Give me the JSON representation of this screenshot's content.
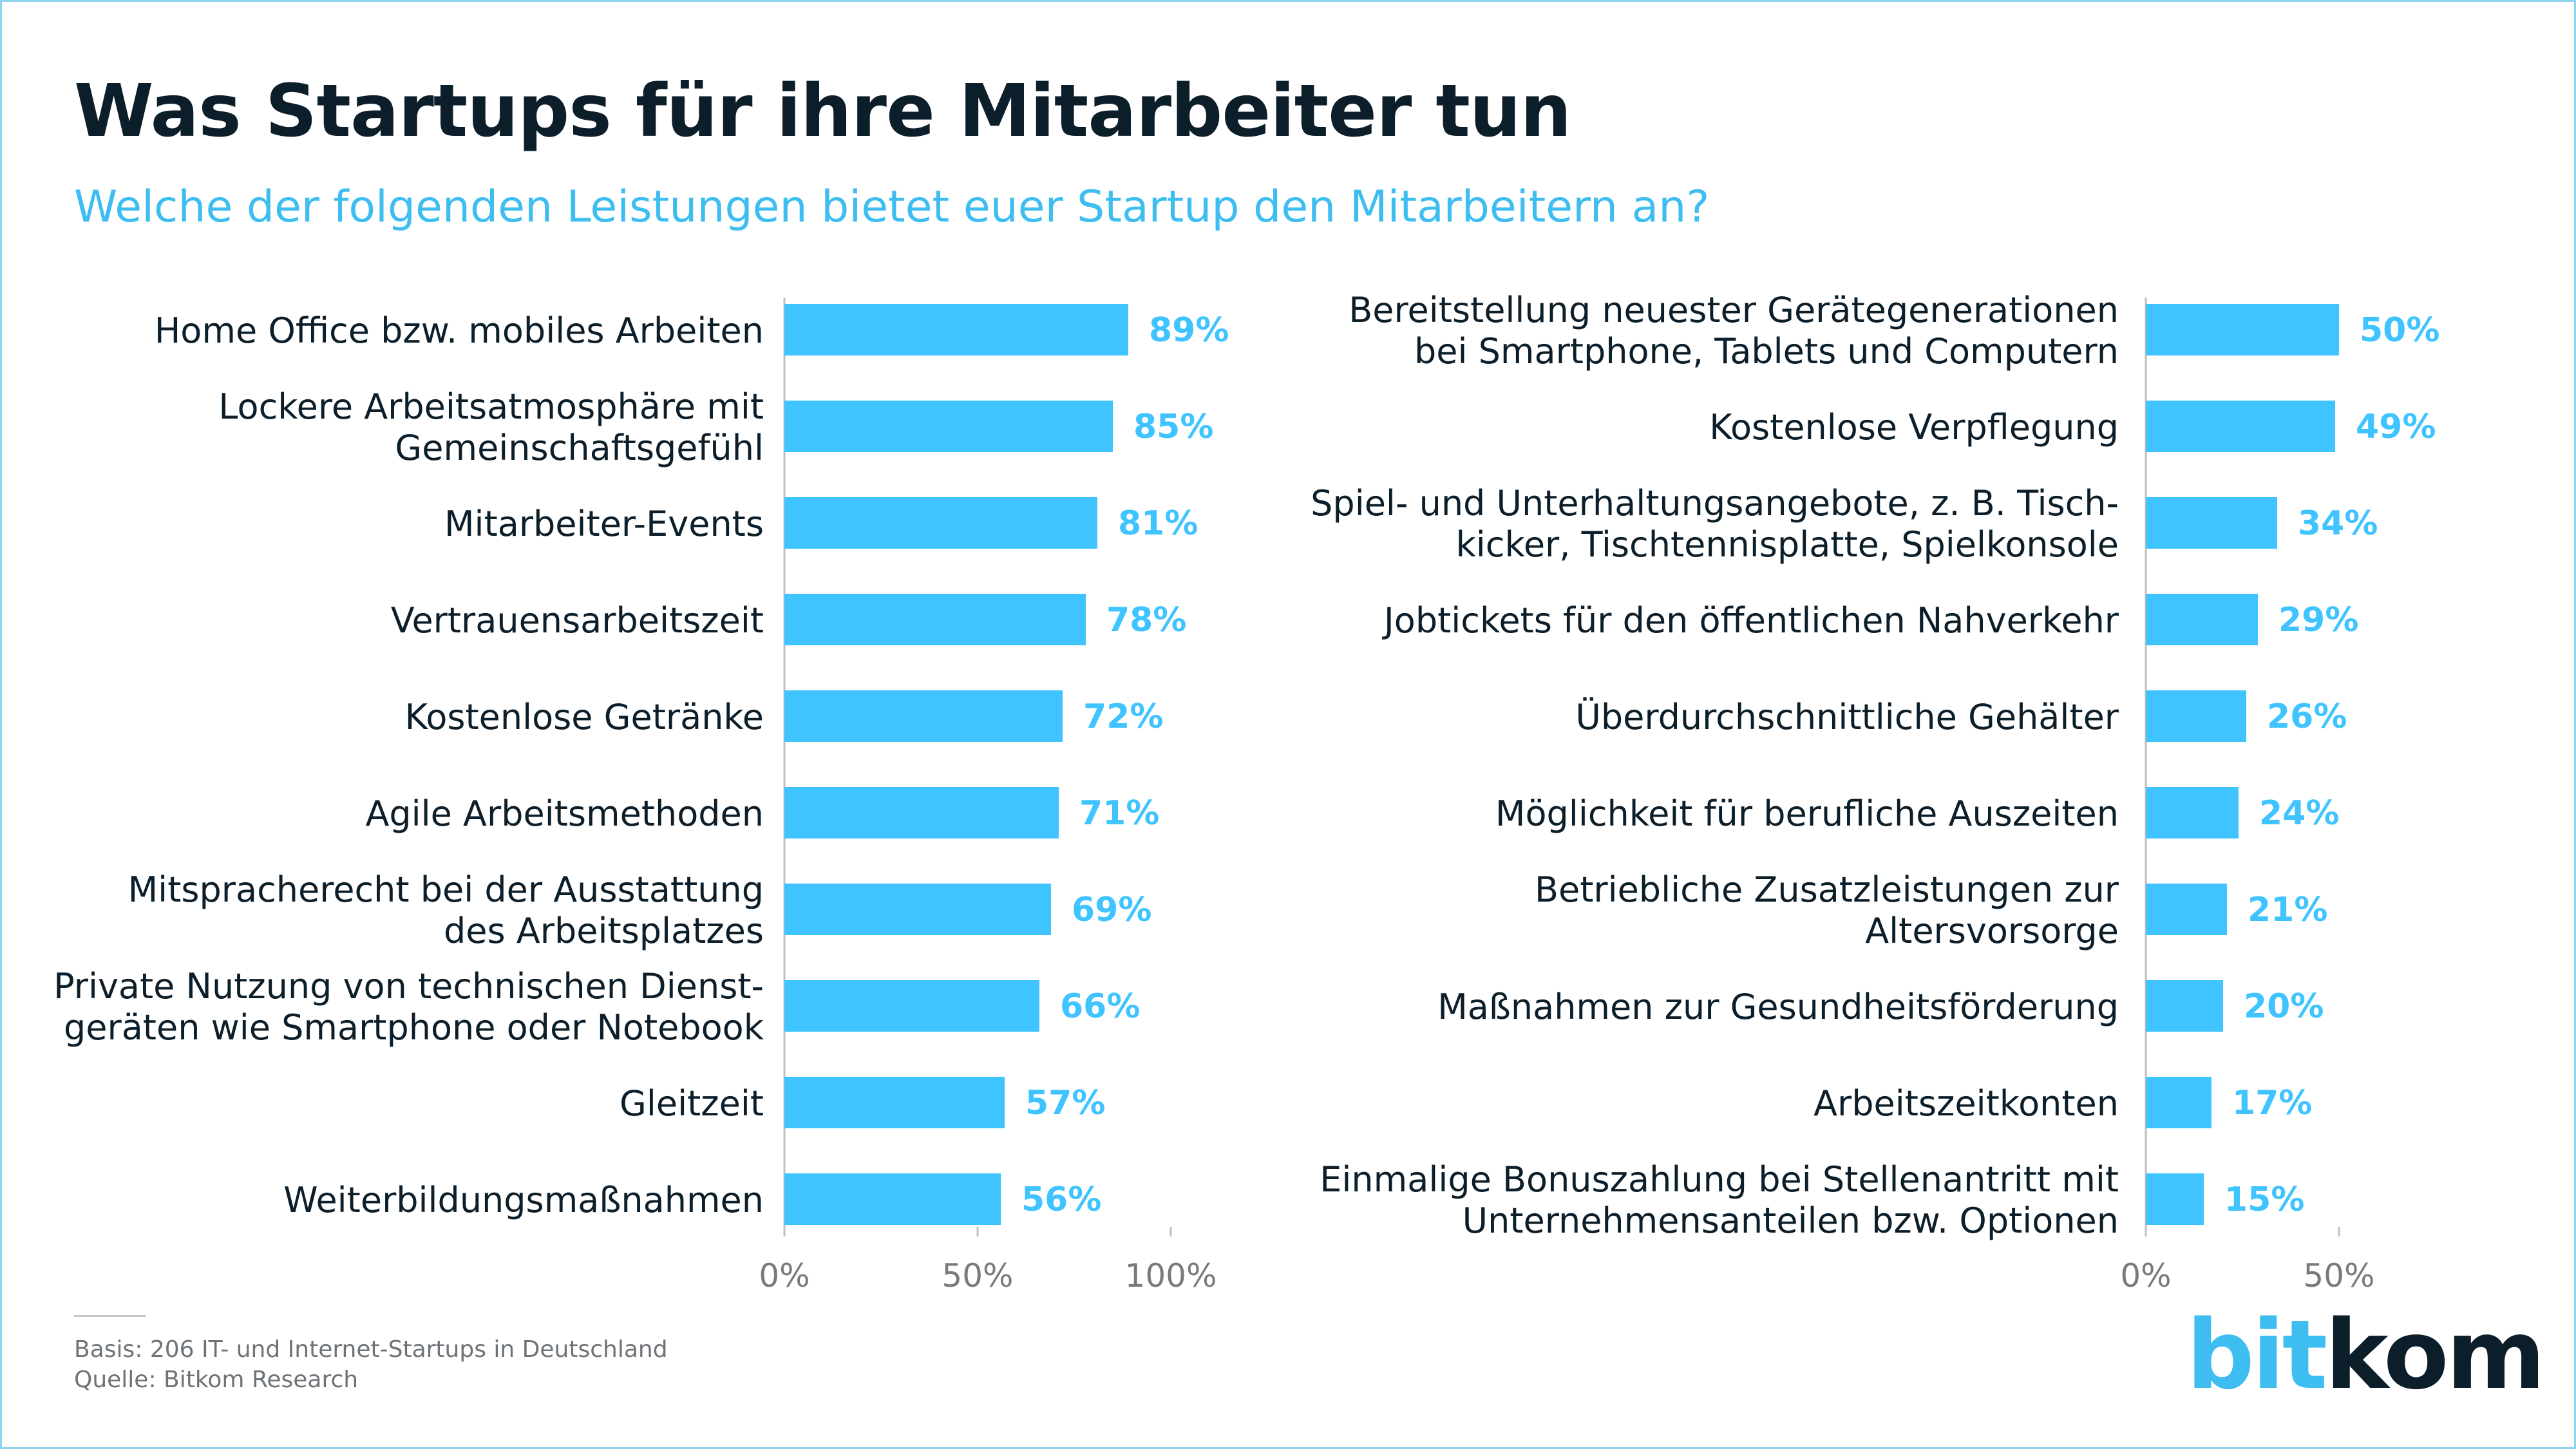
{
  "title": "Was Startups für ihre Mitarbeiter tun",
  "subtitle": "Welche der folgenden Leistungen bietet euer Startup den Mitarbeitern an?",
  "footer": {
    "basis": "Basis: 206 IT- und Internet-Startups in Deutschland",
    "source": "Quelle: Bitkom Research"
  },
  "logo": {
    "part1": "bit",
    "part2": "kom"
  },
  "colors": {
    "bar": "#40c4ff",
    "value_label": "#40c4ff",
    "title": "#0d1e2b",
    "subtitle": "#3dbdf0"
  },
  "chart_data": [
    {
      "type": "bar",
      "orientation": "horizontal",
      "categories": [
        [
          "Home Office bzw. mobiles Arbeiten"
        ],
        [
          "Lockere Arbeitsatmosphäre mit",
          "Gemeinschaftsgefühl"
        ],
        [
          "Mitarbeiter-Events"
        ],
        [
          "Vertrauensarbeitszeit"
        ],
        [
          "Kostenlose Getränke"
        ],
        [
          "Agile Arbeitsmethoden"
        ],
        [
          "Mitspracherecht bei der Ausstattung",
          "des Arbeitsplatzes"
        ],
        [
          "Private Nutzung von technischen Dienst-",
          "geräten wie Smartphone oder Notebook"
        ],
        [
          "Gleitzeit"
        ],
        [
          "Weiterbildungsmaßnahmen"
        ]
      ],
      "values": [
        89,
        85,
        81,
        78,
        72,
        71,
        69,
        66,
        57,
        56
      ],
      "value_labels": [
        "89%",
        "85%",
        "81%",
        "78%",
        "72%",
        "71%",
        "69%",
        "66%",
        "57%",
        "56%"
      ],
      "xlim": [
        0,
        100
      ],
      "xticks": [
        0,
        50,
        100
      ],
      "xtick_labels": [
        "0%",
        "50%",
        "100%"
      ]
    },
    {
      "type": "bar",
      "orientation": "horizontal",
      "categories": [
        [
          "Bereitstellung neuester Gerätegenerationen",
          "bei Smartphone, Tablets und Computern"
        ],
        [
          "Kostenlose Verpflegung"
        ],
        [
          "Spiel- und Unterhaltungsangebote, z. B. Tisch-",
          "kicker, Tischtennisplatte, Spielkonsole"
        ],
        [
          "Jobtickets für den öffentlichen Nahverkehr"
        ],
        [
          "Überdurchschnittliche Gehälter"
        ],
        [
          "Möglichkeit für berufliche Auszeiten"
        ],
        [
          "Betriebliche Zusatzleistungen zur",
          "Altersvorsorge"
        ],
        [
          "Maßnahmen zur Gesundheitsförderung"
        ],
        [
          "Arbeitszeitkonten"
        ],
        [
          "Einmalige Bonuszahlung bei Stellenantritt mit",
          "Unternehmensanteilen bzw. Optionen"
        ]
      ],
      "values": [
        50,
        49,
        34,
        29,
        26,
        24,
        21,
        20,
        17,
        15
      ],
      "value_labels": [
        "50%",
        "49%",
        "34%",
        "29%",
        "26%",
        "24%",
        "21%",
        "20%",
        "17%",
        "15%"
      ],
      "xlim": [
        0,
        50
      ],
      "xticks": [
        0,
        50
      ],
      "xtick_labels": [
        "0%",
        "50%"
      ]
    }
  ]
}
